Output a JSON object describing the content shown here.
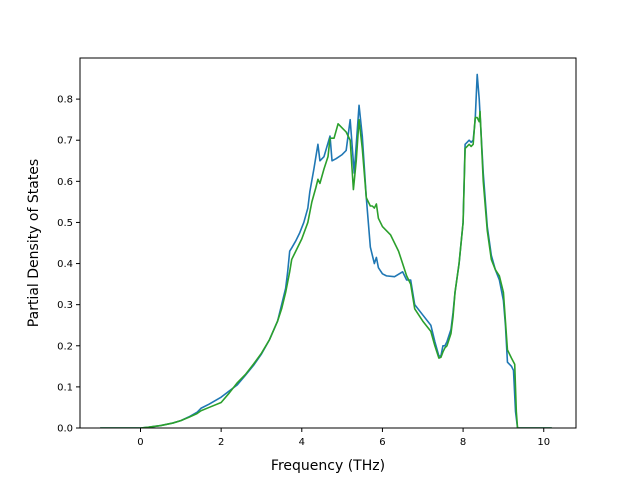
{
  "chart_data": {
    "type": "line",
    "title": "",
    "xlabel": "Frequency (THz)",
    "ylabel": "Partial Density of States",
    "xlim": [
      -1.5,
      10.8
    ],
    "ylim": [
      0.0,
      0.9
    ],
    "x_ticks": [
      0,
      2,
      4,
      6,
      8,
      10
    ],
    "x_tick_labels": [
      "0",
      "2",
      "4",
      "6",
      "8",
      "10"
    ],
    "y_ticks": [
      0.0,
      0.1,
      0.2,
      0.3,
      0.4,
      0.5,
      0.6,
      0.7,
      0.8
    ],
    "y_tick_labels": [
      "0.0",
      "0.1",
      "0.2",
      "0.3",
      "0.4",
      "0.5",
      "0.6",
      "0.7",
      "0.8"
    ],
    "grid": false,
    "legend": "none",
    "series": [
      {
        "color": "#1f77b4",
        "points": [
          [
            -1.0,
            0.0
          ],
          [
            0.0,
            0.0
          ],
          [
            0.2,
            0.002
          ],
          [
            0.5,
            0.006
          ],
          [
            0.8,
            0.012
          ],
          [
            1.0,
            0.018
          ],
          [
            1.2,
            0.027
          ],
          [
            1.4,
            0.038
          ],
          [
            1.5,
            0.048
          ],
          [
            1.7,
            0.058
          ],
          [
            2.0,
            0.075
          ],
          [
            2.2,
            0.09
          ],
          [
            2.4,
            0.105
          ],
          [
            2.6,
            0.128
          ],
          [
            2.8,
            0.152
          ],
          [
            3.0,
            0.18
          ],
          [
            3.2,
            0.215
          ],
          [
            3.4,
            0.26
          ],
          [
            3.5,
            0.3
          ],
          [
            3.6,
            0.34
          ],
          [
            3.65,
            0.38
          ],
          [
            3.7,
            0.43
          ],
          [
            3.75,
            0.438
          ],
          [
            3.85,
            0.455
          ],
          [
            3.95,
            0.475
          ],
          [
            4.05,
            0.5
          ],
          [
            4.15,
            0.535
          ],
          [
            4.2,
            0.575
          ],
          [
            4.3,
            0.63
          ],
          [
            4.35,
            0.66
          ],
          [
            4.4,
            0.69
          ],
          [
            4.45,
            0.65
          ],
          [
            4.55,
            0.66
          ],
          [
            4.7,
            0.71
          ],
          [
            4.75,
            0.65
          ],
          [
            4.85,
            0.655
          ],
          [
            5.0,
            0.665
          ],
          [
            5.1,
            0.675
          ],
          [
            5.2,
            0.75
          ],
          [
            5.3,
            0.62
          ],
          [
            5.42,
            0.785
          ],
          [
            5.5,
            0.71
          ],
          [
            5.6,
            0.56
          ],
          [
            5.7,
            0.44
          ],
          [
            5.8,
            0.4
          ],
          [
            5.85,
            0.415
          ],
          [
            5.9,
            0.39
          ],
          [
            6.0,
            0.375
          ],
          [
            6.1,
            0.37
          ],
          [
            6.3,
            0.368
          ],
          [
            6.5,
            0.38
          ],
          [
            6.6,
            0.36
          ],
          [
            6.7,
            0.36
          ],
          [
            6.8,
            0.3
          ],
          [
            7.0,
            0.275
          ],
          [
            7.2,
            0.25
          ],
          [
            7.3,
            0.21
          ],
          [
            7.4,
            0.175
          ],
          [
            7.45,
            0.175
          ],
          [
            7.5,
            0.2
          ],
          [
            7.55,
            0.2
          ],
          [
            7.6,
            0.21
          ],
          [
            7.7,
            0.24
          ],
          [
            7.75,
            0.28
          ],
          [
            7.8,
            0.33
          ],
          [
            7.9,
            0.4
          ],
          [
            8.0,
            0.5
          ],
          [
            8.05,
            0.69
          ],
          [
            8.1,
            0.695
          ],
          [
            8.15,
            0.7
          ],
          [
            8.2,
            0.695
          ],
          [
            8.25,
            0.7
          ],
          [
            8.3,
            0.75
          ],
          [
            8.35,
            0.86
          ],
          [
            8.4,
            0.8
          ],
          [
            8.5,
            0.62
          ],
          [
            8.6,
            0.49
          ],
          [
            8.7,
            0.42
          ],
          [
            8.8,
            0.385
          ],
          [
            8.9,
            0.36
          ],
          [
            9.0,
            0.31
          ],
          [
            9.05,
            0.25
          ],
          [
            9.1,
            0.16
          ],
          [
            9.2,
            0.15
          ],
          [
            9.25,
            0.14
          ],
          [
            9.3,
            0.04
          ],
          [
            9.35,
            0.0
          ],
          [
            10.2,
            0.0
          ]
        ]
      },
      {
        "color": "#2ca02c",
        "points": [
          [
            -1.0,
            0.0
          ],
          [
            0.0,
            0.0
          ],
          [
            0.2,
            0.002
          ],
          [
            0.5,
            0.006
          ],
          [
            0.8,
            0.012
          ],
          [
            1.0,
            0.018
          ],
          [
            1.2,
            0.026
          ],
          [
            1.4,
            0.035
          ],
          [
            1.5,
            0.042
          ],
          [
            1.7,
            0.05
          ],
          [
            2.0,
            0.062
          ],
          [
            2.2,
            0.085
          ],
          [
            2.4,
            0.11
          ],
          [
            2.6,
            0.13
          ],
          [
            2.8,
            0.155
          ],
          [
            3.0,
            0.182
          ],
          [
            3.2,
            0.215
          ],
          [
            3.4,
            0.26
          ],
          [
            3.5,
            0.29
          ],
          [
            3.6,
            0.33
          ],
          [
            3.7,
            0.38
          ],
          [
            3.75,
            0.41
          ],
          [
            3.85,
            0.43
          ],
          [
            4.0,
            0.46
          ],
          [
            4.15,
            0.5
          ],
          [
            4.25,
            0.55
          ],
          [
            4.35,
            0.585
          ],
          [
            4.4,
            0.605
          ],
          [
            4.45,
            0.595
          ],
          [
            4.55,
            0.63
          ],
          [
            4.65,
            0.66
          ],
          [
            4.7,
            0.705
          ],
          [
            4.8,
            0.705
          ],
          [
            4.9,
            0.74
          ],
          [
            5.0,
            0.73
          ],
          [
            5.1,
            0.72
          ],
          [
            5.2,
            0.7
          ],
          [
            5.28,
            0.58
          ],
          [
            5.35,
            0.65
          ],
          [
            5.42,
            0.75
          ],
          [
            5.5,
            0.68
          ],
          [
            5.6,
            0.56
          ],
          [
            5.7,
            0.54
          ],
          [
            5.75,
            0.54
          ],
          [
            5.8,
            0.535
          ],
          [
            5.85,
            0.545
          ],
          [
            5.9,
            0.51
          ],
          [
            6.0,
            0.49
          ],
          [
            6.2,
            0.47
          ],
          [
            6.4,
            0.43
          ],
          [
            6.5,
            0.4
          ],
          [
            6.6,
            0.37
          ],
          [
            6.7,
            0.35
          ],
          [
            6.8,
            0.29
          ],
          [
            7.0,
            0.26
          ],
          [
            7.2,
            0.235
          ],
          [
            7.3,
            0.2
          ],
          [
            7.4,
            0.17
          ],
          [
            7.45,
            0.172
          ],
          [
            7.5,
            0.185
          ],
          [
            7.55,
            0.195
          ],
          [
            7.6,
            0.2
          ],
          [
            7.7,
            0.23
          ],
          [
            7.75,
            0.27
          ],
          [
            7.8,
            0.33
          ],
          [
            7.9,
            0.4
          ],
          [
            8.0,
            0.5
          ],
          [
            8.05,
            0.68
          ],
          [
            8.1,
            0.685
          ],
          [
            8.15,
            0.69
          ],
          [
            8.2,
            0.685
          ],
          [
            8.25,
            0.69
          ],
          [
            8.3,
            0.755
          ],
          [
            8.35,
            0.755
          ],
          [
            8.4,
            0.745
          ],
          [
            8.42,
            0.77
          ],
          [
            8.5,
            0.6
          ],
          [
            8.6,
            0.48
          ],
          [
            8.7,
            0.41
          ],
          [
            8.8,
            0.385
          ],
          [
            8.9,
            0.37
          ],
          [
            9.0,
            0.33
          ],
          [
            9.1,
            0.19
          ],
          [
            9.2,
            0.17
          ],
          [
            9.28,
            0.155
          ],
          [
            9.32,
            0.04
          ],
          [
            9.35,
            0.0
          ],
          [
            10.2,
            0.0
          ]
        ]
      }
    ]
  }
}
